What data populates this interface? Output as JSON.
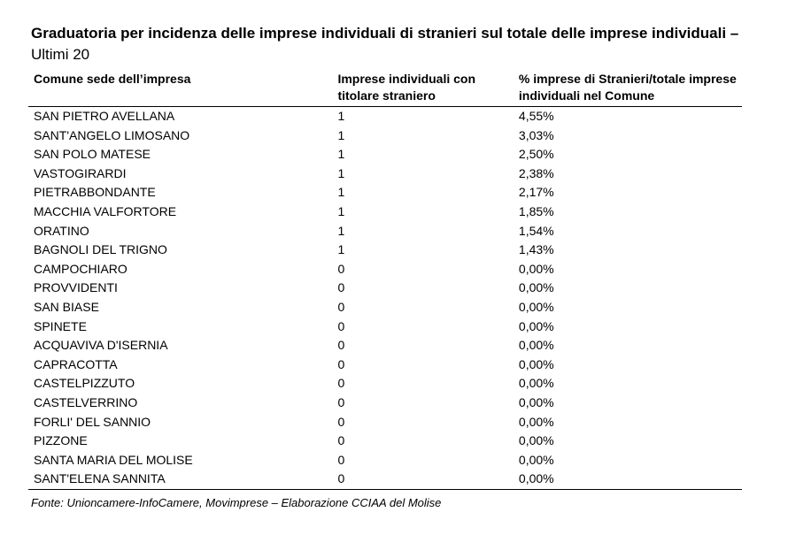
{
  "title": {
    "main": "Graduatoria per incidenza delle imprese individuali di stranieri sul totale delle imprese individuali –",
    "suffix": "Ultimi 20"
  },
  "table": {
    "headers": [
      "Comune sede dell’impresa",
      "Imprese individuali con titolare straniero",
      "% imprese di Stranieri/totale imprese individuali nel Comune"
    ],
    "rows": [
      [
        "SAN PIETRO AVELLANA",
        "1",
        "4,55%"
      ],
      [
        "SANT'ANGELO LIMOSANO",
        "1",
        "3,03%"
      ],
      [
        "SAN POLO MATESE",
        "1",
        "2,50%"
      ],
      [
        "VASTOGIRARDI",
        "1",
        "2,38%"
      ],
      [
        "PIETRABBONDANTE",
        "1",
        "2,17%"
      ],
      [
        "MACCHIA VALFORTORE",
        "1",
        "1,85%"
      ],
      [
        "ORATINO",
        "1",
        "1,54%"
      ],
      [
        "BAGNOLI DEL TRIGNO",
        "1",
        "1,43%"
      ],
      [
        "CAMPOCHIARO",
        "0",
        "0,00%"
      ],
      [
        "PROVVIDENTI",
        "0",
        "0,00%"
      ],
      [
        "SAN BIASE",
        "0",
        "0,00%"
      ],
      [
        "SPINETE",
        "0",
        "0,00%"
      ],
      [
        "ACQUAVIVA D'ISERNIA",
        "0",
        "0,00%"
      ],
      [
        "CAPRACOTTA",
        "0",
        "0,00%"
      ],
      [
        "CASTELPIZZUTO",
        "0",
        "0,00%"
      ],
      [
        "CASTELVERRINO",
        "0",
        "0,00%"
      ],
      [
        "FORLI' DEL SANNIO",
        "0",
        "0,00%"
      ],
      [
        "PIZZONE",
        "0",
        "0,00%"
      ],
      [
        "SANTA MARIA DEL MOLISE",
        "0",
        "0,00%"
      ],
      [
        "SANT'ELENA SANNITA",
        "0",
        "0,00%"
      ]
    ]
  },
  "source": "Fonte: Unioncamere-InfoCamere, Movimprese – Elaborazione CCIAA del Molise"
}
